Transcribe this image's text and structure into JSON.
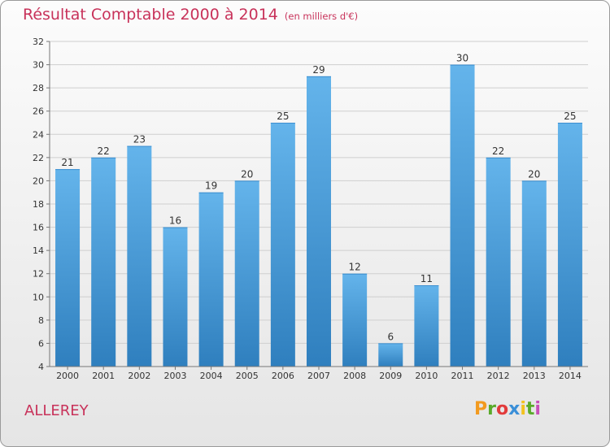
{
  "chart_data": {
    "type": "bar",
    "title": "Résultat Comptable 2000 à 2014",
    "unit_note": "(en milliers d'€)",
    "categories": [
      "2000",
      "2001",
      "2002",
      "2003",
      "2004",
      "2005",
      "2006",
      "2007",
      "2008",
      "2009",
      "2010",
      "2011",
      "2012",
      "2013",
      "2014"
    ],
    "values": [
      21,
      22,
      23,
      16,
      19,
      20,
      25,
      29,
      12,
      6,
      11,
      30,
      22,
      20,
      25
    ],
    "ylim": [
      4,
      32
    ],
    "yticks": [
      4,
      6,
      8,
      10,
      12,
      14,
      16,
      18,
      20,
      22,
      24,
      26,
      28,
      30,
      32
    ],
    "xlabel": "",
    "ylabel": "",
    "grid": true
  },
  "place": "ALLEREY",
  "logo": {
    "text": "Proxiti",
    "letter_colors": [
      "#f29a1f",
      "#5aaa2a",
      "#e23b3b",
      "#3a8fd8",
      "#f2c21f",
      "#5aaa2a",
      "#c84fb8"
    ]
  },
  "colors": {
    "title": "#c8325a",
    "bar_top": "#64b4eb",
    "bar_bottom": "#2f7fbe",
    "axis": "#777777",
    "grid": "#cfcfcf"
  }
}
